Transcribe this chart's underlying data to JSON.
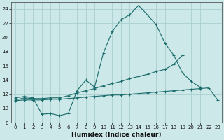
{
  "xlabel": "Humidex (Indice chaleur)",
  "ylabel": "",
  "bg_color": "#cce8e8",
  "line_color": "#1a6b6b",
  "grid_color": "#aacece",
  "xlim": [
    -0.5,
    23.5
  ],
  "ylim": [
    8,
    25
  ],
  "yticks": [
    8,
    10,
    12,
    14,
    16,
    18,
    20,
    22,
    24
  ],
  "xticks": [
    0,
    1,
    2,
    3,
    4,
    5,
    6,
    7,
    8,
    9,
    10,
    11,
    12,
    13,
    14,
    15,
    16,
    17,
    18,
    19,
    20,
    21,
    22,
    23
  ],
  "line1_x": [
    0,
    1,
    2,
    3,
    4,
    5,
    6,
    7,
    8,
    9,
    10,
    11,
    12,
    13,
    14,
    15,
    16,
    17,
    18,
    19,
    20,
    21
  ],
  "line1_y": [
    11.5,
    11.7,
    11.5,
    9.2,
    9.3,
    9.0,
    9.3,
    12.5,
    14.0,
    13.0,
    17.8,
    20.8,
    22.5,
    23.2,
    24.5,
    23.2,
    21.8,
    19.2,
    17.5,
    15.0,
    13.8,
    13.0
  ],
  "line2_x": [
    0,
    1,
    2,
    3,
    4,
    5,
    6,
    7,
    8,
    9,
    10,
    11,
    12,
    13,
    14,
    15,
    16,
    17,
    18,
    19
  ],
  "line2_y": [
    11.2,
    11.5,
    11.4,
    11.4,
    11.5,
    11.5,
    11.8,
    12.2,
    12.5,
    12.8,
    13.2,
    13.5,
    13.8,
    14.2,
    14.5,
    14.8,
    15.2,
    15.5,
    16.2,
    17.5
  ],
  "line3_x": [
    0,
    1,
    2,
    3,
    4,
    5,
    6,
    7,
    8,
    9,
    10,
    11,
    12,
    13,
    14,
    15,
    16,
    17,
    18,
    19,
    20,
    21,
    22,
    23
  ],
  "line3_y": [
    11.1,
    11.2,
    11.2,
    11.2,
    11.3,
    11.3,
    11.4,
    11.5,
    11.6,
    11.7,
    11.8,
    11.9,
    11.9,
    12.0,
    12.1,
    12.2,
    12.3,
    12.4,
    12.5,
    12.6,
    12.7,
    12.8,
    12.9,
    11.2
  ]
}
